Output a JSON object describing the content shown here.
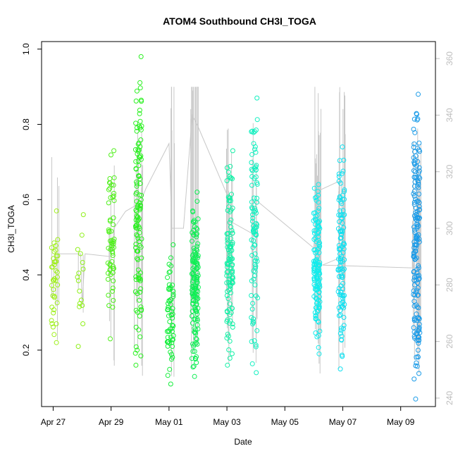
{
  "chart_data": {
    "type": "scatter",
    "title": "ATOM4 Southbound CH3I_TOGA",
    "xlabel": "Date",
    "ylabel": "CH3I_TOGA",
    "xlim": [
      -0.4,
      13.2
    ],
    "ylim": [
      0.05,
      1.02
    ],
    "y2lim": [
      237,
      366
    ],
    "x_ticks": [
      {
        "value": 0,
        "label": "Apr 27"
      },
      {
        "value": 2,
        "label": "Apr 29"
      },
      {
        "value": 4,
        "label": "May 01"
      },
      {
        "value": 6,
        "label": "May 03"
      },
      {
        "value": 8,
        "label": "May 05"
      },
      {
        "value": 10,
        "label": "May 07"
      },
      {
        "value": 12,
        "label": "May 09"
      }
    ],
    "y_ticks": [
      0.2,
      0.4,
      0.6,
      0.8,
      1.0
    ],
    "y_tick_labels": [
      "0.2",
      "0.4",
      "0.6",
      "0.8",
      "1.0"
    ],
    "y2_ticks": [
      240,
      260,
      280,
      300,
      320,
      340,
      360
    ],
    "y2_tick_labels": [
      "240",
      "260",
      "280",
      "300",
      "320",
      "340",
      "360"
    ],
    "point_color_scale": "day-of-flight gradient (yellow-green to blue)",
    "clusters": [
      {
        "x": 0.05,
        "color": "#9ef01a",
        "y_min": 0.22,
        "y_max": 0.57,
        "n": 40
      },
      {
        "x": 0.95,
        "color": "#8ff01a",
        "y_min": 0.21,
        "y_max": 0.56,
        "n": 16
      },
      {
        "x": 2.0,
        "color": "#4ff01a",
        "y_min": 0.23,
        "y_max": 0.73,
        "n": 60
      },
      {
        "x": 2.95,
        "color": "#2af020",
        "y_min": 0.16,
        "y_max": 0.98,
        "n": 120
      },
      {
        "x": 4.05,
        "color": "#13ee3a",
        "y_min": 0.11,
        "y_max": 0.48,
        "n": 60
      },
      {
        "x": 4.9,
        "color": "#10ee55",
        "y_min": 0.13,
        "y_max": 0.62,
        "n": 140
      },
      {
        "x": 6.1,
        "color": "#12f0a6",
        "y_min": 0.16,
        "y_max": 0.73,
        "n": 110
      },
      {
        "x": 6.95,
        "color": "#12f0c0",
        "y_min": 0.14,
        "y_max": 0.87,
        "n": 90
      },
      {
        "x": 9.1,
        "color": "#12ecec",
        "y_min": 0.19,
        "y_max": 0.64,
        "n": 140
      },
      {
        "x": 9.95,
        "color": "#12e0f0",
        "y_min": 0.15,
        "y_max": 0.74,
        "n": 110
      },
      {
        "x": 12.55,
        "color": "#1a9be8",
        "y_min": 0.07,
        "y_max": 0.88,
        "n": 170
      }
    ],
    "altitude_track": [
      {
        "x": 0.0,
        "y": 276
      },
      {
        "x": 0.05,
        "y": 291
      },
      {
        "x": 0.95,
        "y": 291
      },
      {
        "x": 1.0,
        "y": 273
      },
      {
        "x": 1.1,
        "y": 291
      },
      {
        "x": 2.0,
        "y": 290
      },
      {
        "x": 2.1,
        "y": 300
      },
      {
        "x": 2.5,
        "y": 306
      },
      {
        "x": 3.0,
        "y": 309
      },
      {
        "x": 3.2,
        "y": 314
      },
      {
        "x": 4.0,
        "y": 330
      },
      {
        "x": 4.1,
        "y": 300
      },
      {
        "x": 4.5,
        "y": 300
      },
      {
        "x": 4.8,
        "y": 340
      },
      {
        "x": 5.0,
        "y": 336
      },
      {
        "x": 6.0,
        "y": 312
      },
      {
        "x": 6.1,
        "y": 311
      },
      {
        "x": 6.2,
        "y": 302
      },
      {
        "x": 6.9,
        "y": 298
      },
      {
        "x": 7.0,
        "y": 310
      },
      {
        "x": 9.0,
        "y": 293
      },
      {
        "x": 9.1,
        "y": 313
      },
      {
        "x": 9.95,
        "y": 317
      },
      {
        "x": 10.0,
        "y": 290
      },
      {
        "x": 9.3,
        "y": 287
      },
      {
        "x": 12.45,
        "y": 286
      },
      {
        "x": 12.6,
        "y": 300
      }
    ]
  }
}
